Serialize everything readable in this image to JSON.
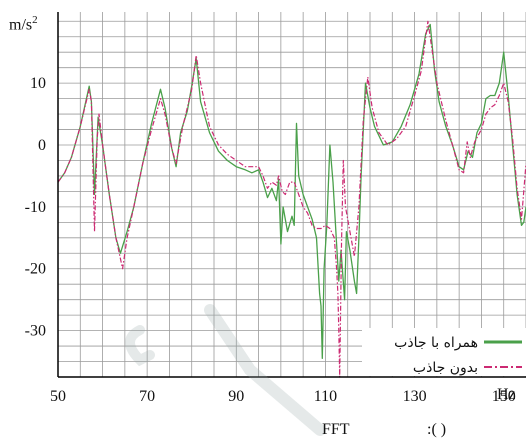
{
  "colors": {
    "with_absorber": "#4aa04a",
    "without_absorber": "#cc2a72",
    "grid": "#9a9a9a",
    "axis": "#000000"
  },
  "caption": {
    "left": "FFT",
    "right": ":(   )"
  },
  "chart_data": {
    "type": "line",
    "ylabel": "m/s",
    "ylabel_sup": "2",
    "xunit": "Hz",
    "xlim": [
      50,
      155
    ],
    "ylim": [
      -37.5,
      21.5
    ],
    "grid": true,
    "legend_placement": "bottom-right",
    "x_ticks": [
      50,
      70,
      90,
      110,
      130,
      150
    ],
    "y_ticks": [
      10,
      0,
      -10,
      -20,
      -30
    ],
    "series": [
      {
        "name": "همراه با جاذب",
        "style": "solid",
        "points": [
          [
            50,
            -6
          ],
          [
            51.5,
            -4.5
          ],
          [
            53,
            -2
          ],
          [
            55,
            3
          ],
          [
            57,
            9.5
          ],
          [
            57.5,
            7
          ],
          [
            58.2,
            -8
          ],
          [
            59,
            4.5
          ],
          [
            60,
            0
          ],
          [
            61.5,
            -8
          ],
          [
            63,
            -15
          ],
          [
            64,
            -17.5
          ],
          [
            65.5,
            -14
          ],
          [
            67,
            -10
          ],
          [
            69,
            -3
          ],
          [
            71,
            3.5
          ],
          [
            73,
            9
          ],
          [
            74,
            6
          ],
          [
            75.5,
            -0.5
          ],
          [
            76.5,
            -3.5
          ],
          [
            77.5,
            2
          ],
          [
            79,
            5.5
          ],
          [
            80,
            9.5
          ],
          [
            81,
            14
          ],
          [
            82,
            7
          ],
          [
            84,
            2
          ],
          [
            86,
            -1
          ],
          [
            88,
            -2.5
          ],
          [
            90,
            -3.5
          ],
          [
            92,
            -4
          ],
          [
            93.5,
            -4.5
          ],
          [
            95,
            -4
          ],
          [
            96,
            -6
          ],
          [
            97,
            -8.5
          ],
          [
            98,
            -7
          ],
          [
            99,
            -9
          ],
          [
            99.5,
            -5.5
          ],
          [
            100,
            -16
          ],
          [
            100.5,
            -10
          ],
          [
            101.5,
            -14
          ],
          [
            102.5,
            -11.5
          ],
          [
            103,
            -13
          ],
          [
            103.5,
            3.5
          ],
          [
            104,
            -5
          ],
          [
            105,
            -8
          ],
          [
            106,
            -10
          ],
          [
            107,
            -12
          ],
          [
            108,
            -15
          ],
          [
            108.7,
            -24
          ],
          [
            109,
            -26
          ],
          [
            109.3,
            -34.5
          ],
          [
            109.7,
            -20
          ],
          [
            110.3,
            -13
          ],
          [
            111,
            0
          ],
          [
            111.7,
            -6
          ],
          [
            112.5,
            -16
          ],
          [
            113,
            -22
          ],
          [
            113.5,
            -17
          ],
          [
            114.3,
            -25
          ],
          [
            114.7,
            -14
          ],
          [
            115.5,
            -17
          ],
          [
            116.5,
            -22
          ],
          [
            117,
            -24
          ],
          [
            117.5,
            -15
          ],
          [
            118,
            -5
          ],
          [
            119,
            10
          ],
          [
            120,
            6
          ],
          [
            121,
            3
          ],
          [
            123,
            0
          ],
          [
            125,
            0.5
          ],
          [
            127,
            3
          ],
          [
            129,
            6.5
          ],
          [
            131,
            11.5
          ],
          [
            132.5,
            18
          ],
          [
            133.5,
            19.5
          ],
          [
            134.5,
            12
          ],
          [
            135.5,
            7
          ],
          [
            137,
            3
          ],
          [
            138.5,
            0
          ],
          [
            140,
            -3.5
          ],
          [
            141,
            -4
          ],
          [
            142,
            -1
          ],
          [
            143,
            -2
          ],
          [
            144,
            2
          ],
          [
            145,
            3.5
          ],
          [
            146,
            7.5
          ],
          [
            147,
            8
          ],
          [
            148,
            8
          ],
          [
            149,
            10
          ],
          [
            150,
            15
          ],
          [
            151,
            8
          ],
          [
            152,
            0
          ],
          [
            153,
            -8
          ],
          [
            154,
            -13
          ],
          [
            154.5,
            -12.5
          ],
          [
            155,
            -10
          ]
        ]
      },
      {
        "name": "بدون جاذب",
        "style": "dashdot",
        "points": [
          [
            50,
            -6
          ],
          [
            51.5,
            -4.5
          ],
          [
            53,
            -2
          ],
          [
            55,
            3
          ],
          [
            57,
            9
          ],
          [
            57.5,
            7
          ],
          [
            58.2,
            -14
          ],
          [
            58.8,
            1
          ],
          [
            59.2,
            5
          ],
          [
            60,
            0
          ],
          [
            61.5,
            -8
          ],
          [
            63,
            -15
          ],
          [
            64.5,
            -20
          ],
          [
            65.5,
            -15
          ],
          [
            67,
            -10
          ],
          [
            69,
            -3
          ],
          [
            71,
            2.5
          ],
          [
            73,
            7.5
          ],
          [
            74,
            5
          ],
          [
            75.5,
            -0.5
          ],
          [
            76.5,
            -3
          ],
          [
            78,
            3
          ],
          [
            80,
            9
          ],
          [
            81,
            14.5
          ],
          [
            82,
            10
          ],
          [
            84,
            3
          ],
          [
            86,
            0
          ],
          [
            88,
            -1.5
          ],
          [
            90,
            -2.5
          ],
          [
            92,
            -3.5
          ],
          [
            94,
            -3.5
          ],
          [
            95,
            -3.5
          ],
          [
            96,
            -5
          ],
          [
            97,
            -7
          ],
          [
            98,
            -6
          ],
          [
            99,
            -6.5
          ],
          [
            99.5,
            -5
          ],
          [
            100.3,
            -7.5
          ],
          [
            101,
            -8
          ],
          [
            102,
            -6
          ],
          [
            103,
            -6
          ],
          [
            104,
            -8
          ],
          [
            105,
            -10
          ],
          [
            106,
            -11
          ],
          [
            107,
            -13
          ],
          [
            108,
            -13.5
          ],
          [
            109,
            -13.5
          ],
          [
            110,
            -13
          ],
          [
            111,
            -13.5
          ],
          [
            112,
            -15
          ],
          [
            112.5,
            -20
          ],
          [
            112.8,
            -24
          ],
          [
            113,
            -30
          ],
          [
            113.2,
            -37.5
          ],
          [
            113.6,
            -16
          ],
          [
            114,
            -2.5
          ],
          [
            114.5,
            -10
          ],
          [
            115.5,
            -14
          ],
          [
            116.5,
            -18
          ],
          [
            117.5,
            -10
          ],
          [
            118.5,
            4
          ],
          [
            119.5,
            11
          ],
          [
            120.5,
            6
          ],
          [
            122,
            2
          ],
          [
            124,
            0
          ],
          [
            126,
            1
          ],
          [
            128,
            3
          ],
          [
            130,
            8
          ],
          [
            131.5,
            12
          ],
          [
            133,
            20
          ],
          [
            134,
            15
          ],
          [
            135,
            10
          ],
          [
            137,
            4
          ],
          [
            138.5,
            0
          ],
          [
            140,
            -4
          ],
          [
            141,
            -4.5
          ],
          [
            141.8,
            0.5
          ],
          [
            142.5,
            -2
          ],
          [
            143.5,
            0.5
          ],
          [
            145,
            2.5
          ],
          [
            146,
            5
          ],
          [
            147,
            6
          ],
          [
            148,
            6.5
          ],
          [
            149,
            8
          ],
          [
            150,
            10
          ],
          [
            151,
            7
          ],
          [
            152,
            1
          ],
          [
            153,
            -7
          ],
          [
            154,
            -12
          ],
          [
            155,
            -3
          ]
        ]
      }
    ]
  }
}
